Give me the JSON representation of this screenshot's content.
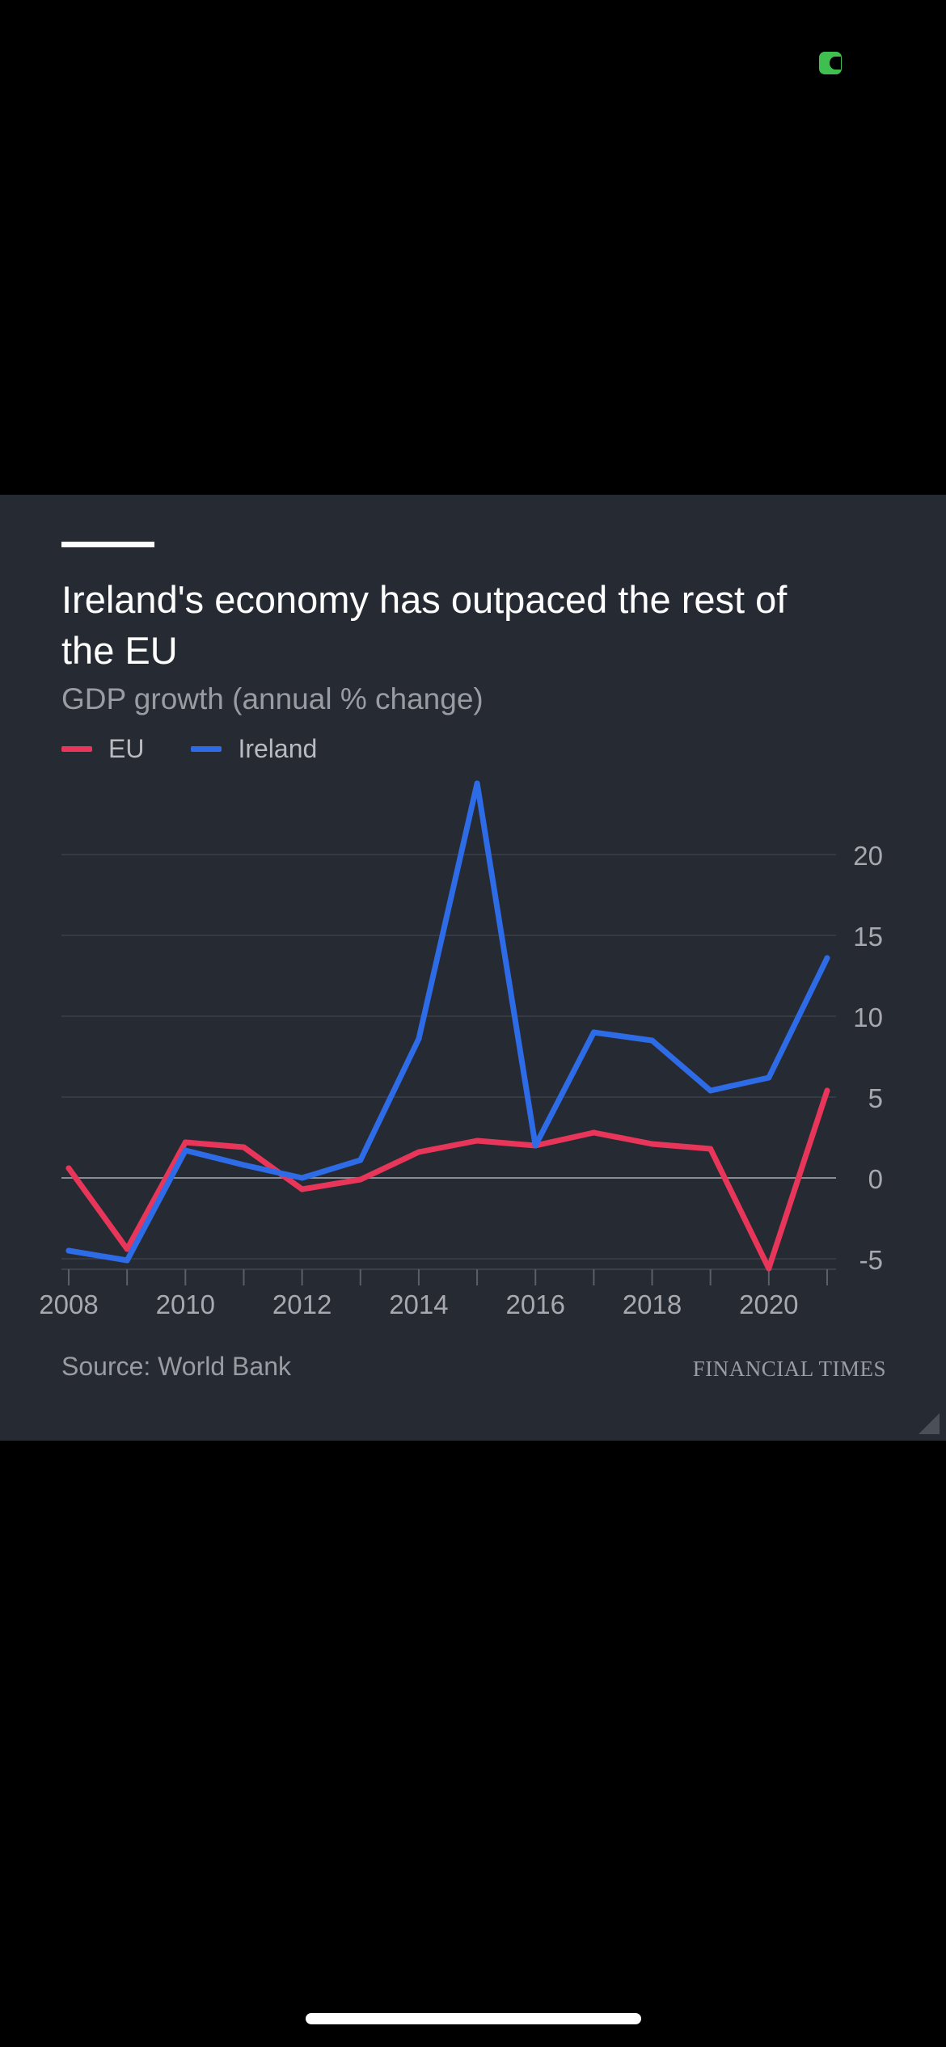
{
  "card": {
    "title": "Ireland's economy has outpaced the rest of the EU",
    "subtitle": "GDP growth (annual % change)",
    "source": "Source: World Bank",
    "publisher": "FINANCIAL TIMES"
  },
  "colors": {
    "background": "#000000",
    "card": "#262a33",
    "eu": "#e8365a",
    "ireland": "#2e6be6",
    "grid": "#3c4049",
    "zero_line": "#8a8d94",
    "axis_text": "#a7a9af",
    "status_indicator": "#3fbf4f"
  },
  "chart_data": {
    "type": "line",
    "title": "Ireland's economy has outpaced the rest of the EU",
    "subtitle": "GDP growth (annual % change)",
    "xlabel": "",
    "ylabel": "",
    "x": [
      2008,
      2009,
      2010,
      2011,
      2012,
      2013,
      2014,
      2015,
      2016,
      2017,
      2018,
      2019,
      2020,
      2021
    ],
    "xticks": [
      "2008",
      "2010",
      "2012",
      "2014",
      "2016",
      "2018",
      "2020"
    ],
    "yticks": [
      "20",
      "15",
      "10",
      "5",
      "0",
      "-5"
    ],
    "ylim": [
      -5.5,
      25
    ],
    "y_axis_side": "right",
    "grid": true,
    "legend_position": "top-left",
    "series": [
      {
        "name": "EU",
        "color": "#e8365a",
        "values": [
          0.6,
          -4.4,
          2.2,
          1.9,
          -0.7,
          -0.1,
          1.6,
          2.3,
          2.0,
          2.8,
          2.1,
          1.8,
          -5.6,
          5.4
        ]
      },
      {
        "name": "Ireland",
        "color": "#2e6be6",
        "values": [
          -4.5,
          -5.1,
          1.7,
          0.8,
          0.0,
          1.1,
          8.6,
          24.4,
          2.0,
          9.0,
          8.5,
          5.4,
          6.2,
          13.6
        ]
      }
    ]
  }
}
